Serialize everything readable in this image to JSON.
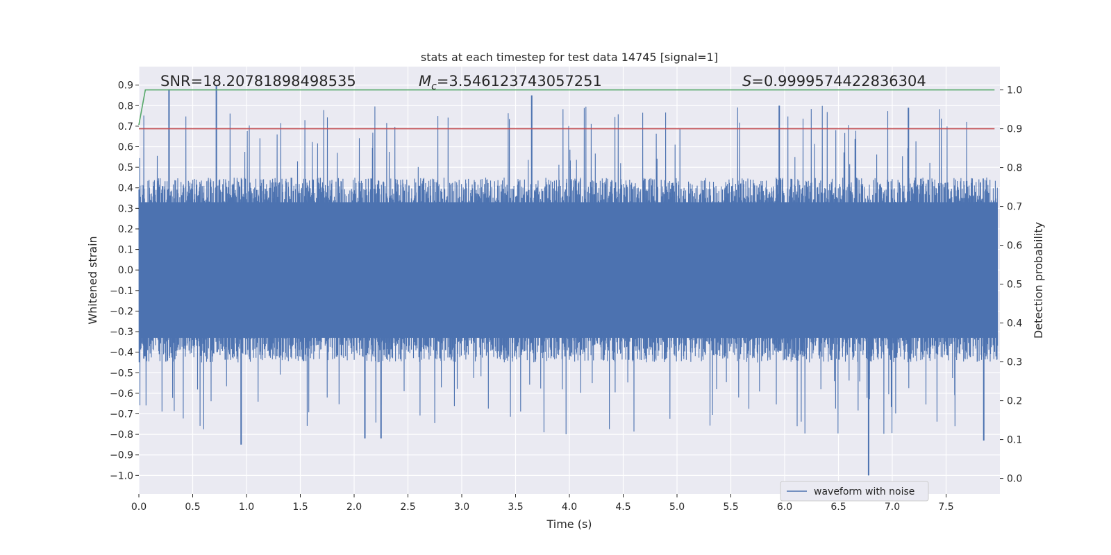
{
  "chart_data": {
    "type": "line",
    "title": "stats at each timestep for test data 14745 [signal=1]",
    "xlabel": "Time (s)",
    "ylabel": "Whitened strain",
    "y2label": "Detection probability",
    "xlim": [
      0.0,
      8.0
    ],
    "ylim": [
      -1.09,
      0.99
    ],
    "y2lim": [
      -0.04,
      1.06
    ],
    "xticks": [
      "0.0",
      "0.5",
      "1.0",
      "1.5",
      "2.0",
      "2.5",
      "3.0",
      "3.5",
      "4.0",
      "4.5",
      "5.0",
      "5.5",
      "6.0",
      "6.5",
      "7.0",
      "7.5"
    ],
    "yticks": [
      "0.9",
      "0.8",
      "0.7",
      "0.6",
      "0.5",
      "0.4",
      "0.3",
      "0.2",
      "0.1",
      "0.0",
      "−0.1",
      "−0.2",
      "−0.3",
      "−0.4",
      "−0.5",
      "−0.6",
      "−0.7",
      "−0.8",
      "−0.9",
      "−1.0"
    ],
    "y2ticks": [
      "1.0",
      "0.9",
      "0.8",
      "0.7",
      "0.6",
      "0.5",
      "0.4",
      "0.3",
      "0.2",
      "0.1",
      "0.0"
    ],
    "grid": true,
    "legend_position": "lower-right",
    "series": [
      {
        "name": "waveform with noise",
        "axis": "left",
        "color": "#4c72b0",
        "description_peaks": {
          "max_points": [
            [
              0.72,
              0.9
            ],
            [
              0.28,
              0.88
            ],
            [
              3.65,
              0.85
            ],
            [
              5.95,
              0.8
            ],
            [
              7.15,
              0.79
            ]
          ],
          "min_points": [
            [
              6.78,
              -1.0
            ],
            [
              0.95,
              -0.85
            ],
            [
              2.1,
              -0.82
            ],
            [
              2.25,
              -0.82
            ],
            [
              7.85,
              -0.83
            ]
          ],
          "typical_envelope": [
            -0.45,
            0.45
          ]
        }
      },
      {
        "name": "",
        "axis": "right",
        "color": "#55a868",
        "x": [
          0.0,
          0.06,
          7.95
        ],
        "y": [
          0.91,
          1.0,
          1.0
        ]
      },
      {
        "name": "",
        "axis": "right",
        "color": "#c44e52",
        "x": [
          0.0,
          7.95
        ],
        "y": [
          0.9,
          0.9
        ]
      }
    ],
    "annotations": {
      "snr": "SNR=18.20781898498535",
      "mc_symbol": "M",
      "mc_sub": "c",
      "mc_value": "=3.546123743057251",
      "s_symbol": "S",
      "s_value": "=0.9999574422836304"
    },
    "colors": {
      "plot_bg": "#eaeaf2",
      "grid": "#ffffff",
      "waveform": "#4c72b0",
      "probability": "#55a868",
      "threshold": "#c44e52"
    }
  }
}
